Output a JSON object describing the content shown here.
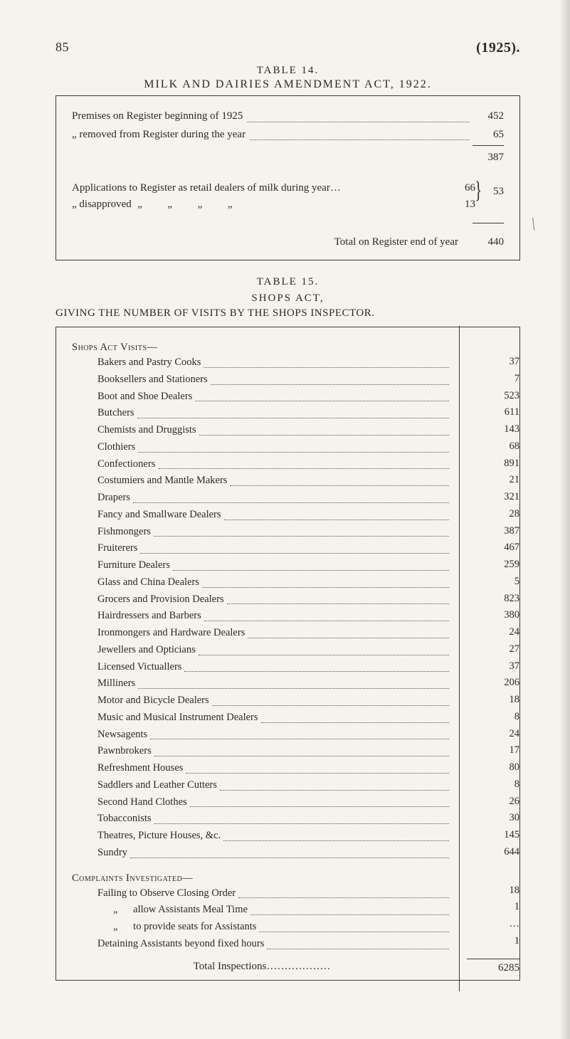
{
  "header": {
    "page_number": "85",
    "year_paren": "(1925)."
  },
  "table14": {
    "label": "TABLE 14.",
    "title": "MILK AND DAIRIES AMENDMENT ACT, 1922.",
    "rows": {
      "premises_begin": {
        "label": "Premises on Register beginning of 1925",
        "value": "452"
      },
      "removed": {
        "label": "„      removed from Register during the year",
        "value": "65"
      },
      "subtotal": {
        "value": "387"
      }
    },
    "apps": {
      "line1": "Applications to Register as retail dealers of milk during year…",
      "line2_pre": "„        disapproved ",
      "ditto": "„",
      "nums": {
        "a": "66",
        "b": "13"
      },
      "sum": "53"
    },
    "total": {
      "label": "Total on Register end of year",
      "value": "440"
    }
  },
  "table15": {
    "label": "TABLE 15.",
    "subtitle": "SHOPS ACT,",
    "giving": "GIVING THE NUMBER OF VISITS BY THE SHOPS INSPECTOR.",
    "visits_header": "Shops Act Visits—",
    "visits": [
      {
        "label": "Bakers and Pastry Cooks",
        "value": "37"
      },
      {
        "label": "Booksellers and Stationers",
        "value": "7"
      },
      {
        "label": "Boot and Shoe Dealers",
        "value": "523"
      },
      {
        "label": "Butchers",
        "value": "611"
      },
      {
        "label": "Chemists and Druggists",
        "value": "143"
      },
      {
        "label": "Clothiers",
        "value": "68"
      },
      {
        "label": "Confectioners",
        "value": "891"
      },
      {
        "label": "Costumiers and Mantle Makers",
        "value": "21"
      },
      {
        "label": "Drapers",
        "value": "321"
      },
      {
        "label": "Fancy and Smallware Dealers",
        "value": "28"
      },
      {
        "label": "Fishmongers",
        "value": "387"
      },
      {
        "label": "Fruiterers",
        "value": "467"
      },
      {
        "label": "Furniture Dealers",
        "value": "259"
      },
      {
        "label": "Glass and China Dealers",
        "value": "5"
      },
      {
        "label": "Grocers and Provision Dealers",
        "value": "823"
      },
      {
        "label": "Hairdressers and Barbers",
        "value": "380"
      },
      {
        "label": "Ironmongers and Hardware Dealers",
        "value": "24"
      },
      {
        "label": "Jewellers and Opticians",
        "value": "27"
      },
      {
        "label": "Licensed Victuallers",
        "value": "37"
      },
      {
        "label": "Milliners",
        "value": "206"
      },
      {
        "label": "Motor and Bicycle Dealers",
        "value": "18"
      },
      {
        "label": "Music and Musical Instrument Dealers",
        "value": "8"
      },
      {
        "label": "Newsagents",
        "value": "24"
      },
      {
        "label": "Pawnbrokers",
        "value": "17"
      },
      {
        "label": "Refreshment Houses",
        "value": "80"
      },
      {
        "label": "Saddlers and Leather Cutters",
        "value": "8"
      },
      {
        "label": "Second Hand Clothes",
        "value": "26"
      },
      {
        "label": "Tobacconists",
        "value": "30"
      },
      {
        "label": "Theatres, Picture Houses, &c.",
        "value": "145"
      },
      {
        "label": "Sundry",
        "value": "644"
      }
    ],
    "complaints_header": "Complaints Investigated—",
    "complaints": [
      {
        "label": "Failing to Observe Closing Order",
        "value": "18"
      },
      {
        "label": "„      allow Assistants Meal Time",
        "value": "1"
      },
      {
        "label": "„      to provide seats for Assistants",
        "value": "…"
      },
      {
        "label": "Detaining Assistants beyond fixed hours",
        "value": "1"
      }
    ],
    "total_inspections": {
      "label": "Total Inspections",
      "value": "6285"
    }
  }
}
